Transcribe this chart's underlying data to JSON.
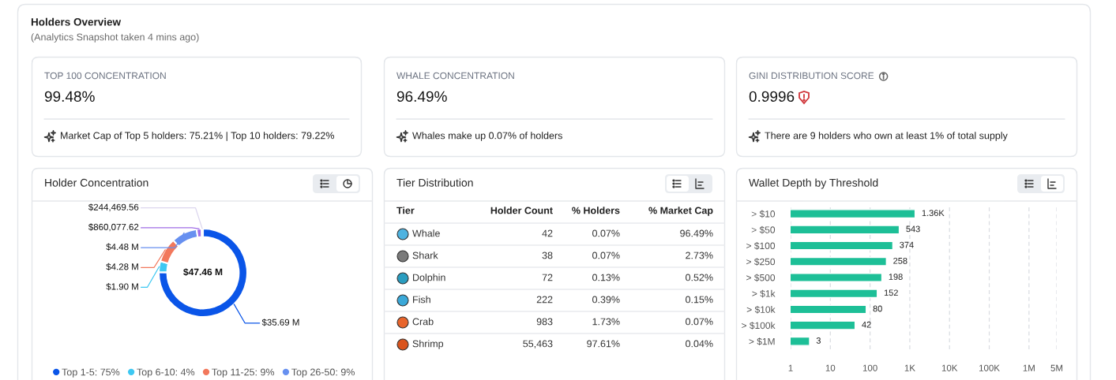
{
  "chart_data": [
    {
      "type": "other",
      "title": "Holders Overview",
      "subtitle": "(Analytics Snapshot taken 4 mins ago)"
    },
    {
      "type": "other",
      "title": "TOP 100 CONCENTRATION",
      "annotations": [
        "99.48%",
        "Market Cap of Top 5 holders: 75.21% | Top 10 holders: 79.22%"
      ]
    },
    {
      "type": "other",
      "title": "WHALE CONCENTRATION",
      "annotations": [
        "96.49%",
        "Whales make up 0.07% of holders"
      ]
    },
    {
      "type": "other",
      "title": "GINI DISTRIBUTION SCORE",
      "annotations": [
        "0.9996",
        "There are 9 holders who own at least 1% of total supply"
      ]
    },
    {
      "type": "donut",
      "title": "Holder Concentration",
      "categories": [
        "Top 1-5: 75%",
        "Top 6-10: 4%",
        "Top 11-25: 9%",
        "Top 26-50: 9%",
        null,
        null
      ],
      "values": [
        35690000,
        1900000,
        4280000,
        4480000,
        860077.62,
        244469.56
      ],
      "colors": [
        "#0a55e8",
        "#3ec8f2",
        "#f2785c",
        "#6790f0",
        "#a06ee6",
        "#dcd6ee"
      ],
      "value_labels": [
        "$35.69 M",
        "$1.90 M",
        "$4.28 M",
        "$4.48 M",
        "$860,077.62",
        "$244,469.56"
      ],
      "annotations": [
        "$47.46 M"
      ],
      "legend": "bottom"
    },
    {
      "type": "other",
      "title": "Tier Distribution",
      "ylabel": "Tier",
      "categories": [
        "Whale",
        "Shark",
        "Dolphin",
        "Fish",
        "Crab",
        "Shrimp"
      ],
      "series": [
        {
          "name": "Holder Count",
          "values": [
            42,
            38,
            72,
            222,
            983,
            55463
          ],
          "value_labels": [
            "42",
            "38",
            "72",
            "222",
            "983",
            "55,463"
          ]
        },
        {
          "name": "% Holders",
          "values": [
            0.07,
            0.07,
            0.13,
            0.39,
            1.73,
            97.61
          ],
          "value_labels": [
            "0.07%",
            "0.07%",
            "0.13%",
            "0.39%",
            "1.73%",
            "97.61%"
          ]
        },
        {
          "name": "% Market Cap",
          "values": [
            96.49,
            2.73,
            0.52,
            0.15,
            0.07,
            0.04
          ],
          "value_labels": [
            "96.49%",
            "2.73%",
            "0.52%",
            "0.15%",
            "0.07%",
            "0.04%"
          ]
        }
      ]
    },
    {
      "type": "bar",
      "orientation": "horizontal",
      "title": "Wallet Depth by Threshold",
      "categories": [
        "> $10",
        "> $50",
        "> $100",
        "> $250",
        "> $500",
        "> $1k",
        "> $10k",
        "> $100k",
        "> $1M"
      ],
      "values": [
        1360,
        543,
        374,
        258,
        198,
        152,
        80,
        42,
        3
      ],
      "value_labels": [
        "1.36K",
        "543",
        "374",
        "258",
        "198",
        "152",
        "80",
        "42",
        "3"
      ],
      "color": "#1dbf97",
      "log": "x",
      "xlim": [
        1,
        5000000
      ],
      "xticks": [
        1,
        10,
        100,
        {
          "value": 1000,
          "label": "1K"
        },
        {
          "value": 10000,
          "label": "10K"
        },
        {
          "value": 100000,
          "label": "100K"
        },
        {
          "value": 1000000,
          "label": "1M"
        },
        {
          "value": 5000000,
          "label": "5M"
        }
      ],
      "grid": "x"
    }
  ]
}
